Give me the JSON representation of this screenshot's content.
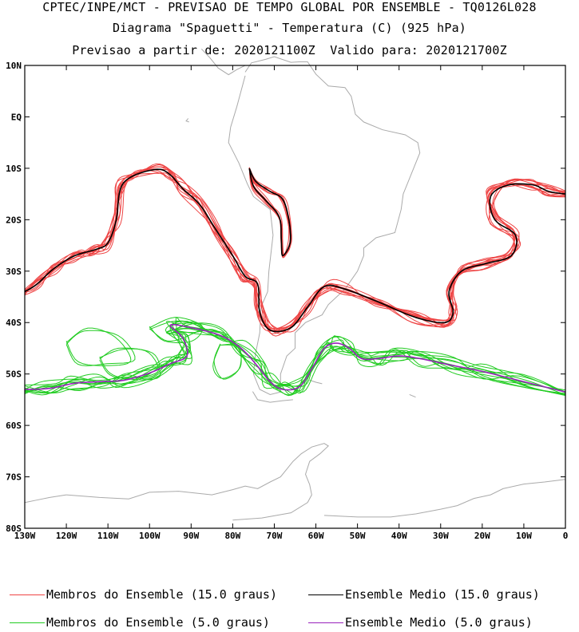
{
  "title": {
    "line1": "CPTEC/INPE/MCT - PREVISAO DE TEMPO GLOBAL POR ENSEMBLE - TQ0126L028",
    "line2": "Diagrama \"Spaguetti\" - Temperatura (C) (925 hPa)",
    "line3": "Previsao a partir de: 2020121100Z  Valido para: 2020121700Z"
  },
  "axes": {
    "lat_labels": [
      "10N",
      "EQ",
      "10S",
      "20S",
      "30S",
      "40S",
      "50S",
      "60S",
      "70S",
      "80S"
    ],
    "lon_labels": [
      "130W",
      "120W",
      "110W",
      "100W",
      "90W",
      "80W",
      "70W",
      "60W",
      "50W",
      "40W",
      "30W",
      "20W",
      "10W",
      "0"
    ],
    "lat_range": [
      -80,
      10
    ],
    "lon_range": [
      -130,
      0
    ]
  },
  "legend": [
    {
      "label": "Membros do Ensemble (15.0 graus)",
      "color": "#ee4444"
    },
    {
      "label": "Ensemble Medio (15.0 graus)",
      "color": "#000000"
    },
    {
      "label": "Membros do Ensemble (5.0 graus)",
      "color": "#22cc22"
    },
    {
      "label": "Ensemble Medio (5.0 graus)",
      "color": "#9922bb"
    }
  ],
  "colors": {
    "member15": "#ee4444",
    "mean15": "#000000",
    "member5": "#22cc22",
    "mean5": "#9922bb",
    "coast": "#aaaaaa"
  }
}
